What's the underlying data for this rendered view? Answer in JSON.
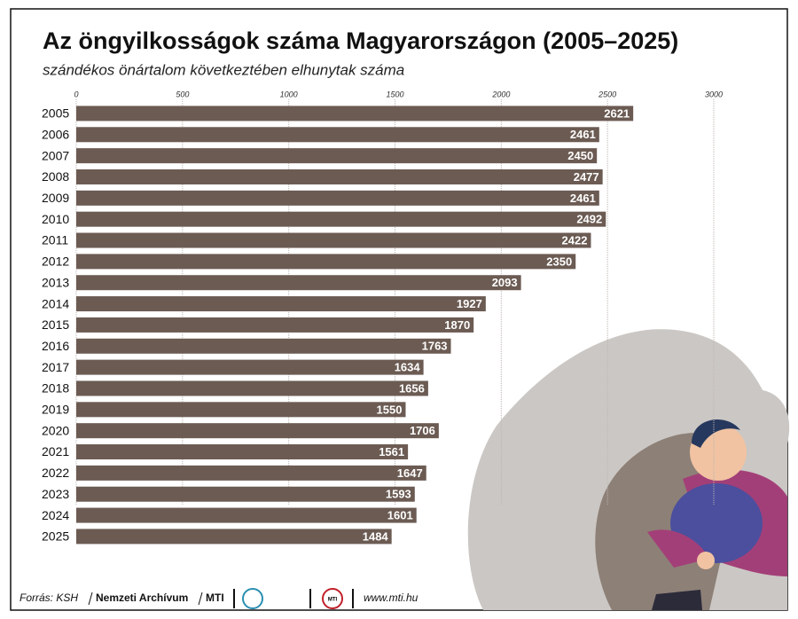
{
  "chart_data": {
    "type": "bar",
    "orientation": "horizontal",
    "title": "Az öngyilkosságok száma Magyarországon (2005–2025)",
    "subtitle": "szándékos önártalom következtében elhunytak száma",
    "categories": [
      "2005",
      "2006",
      "2007",
      "2008",
      "2009",
      "2010",
      "2011",
      "2012",
      "2013",
      "2014",
      "2015",
      "2016",
      "2017",
      "2018",
      "2019",
      "2020",
      "2021",
      "2022",
      "2023",
      "2024",
      "2025"
    ],
    "values": [
      2621,
      2461,
      2450,
      2477,
      2461,
      2492,
      2422,
      2350,
      2093,
      1927,
      1870,
      1763,
      1634,
      1656,
      1550,
      1706,
      1561,
      1647,
      1593,
      1601,
      1484
    ],
    "color": "#6b5b53",
    "xlim": [
      0,
      3000
    ],
    "xticks": [
      0,
      500,
      1000,
      1500,
      2000,
      2500,
      3000
    ],
    "grid": true
  },
  "footer": {
    "source": "Forrás: KSH",
    "archive": "Nemzeti Archívum",
    "agency": "MTI",
    "logo": "MTI",
    "website": "www.mti.hu"
  }
}
